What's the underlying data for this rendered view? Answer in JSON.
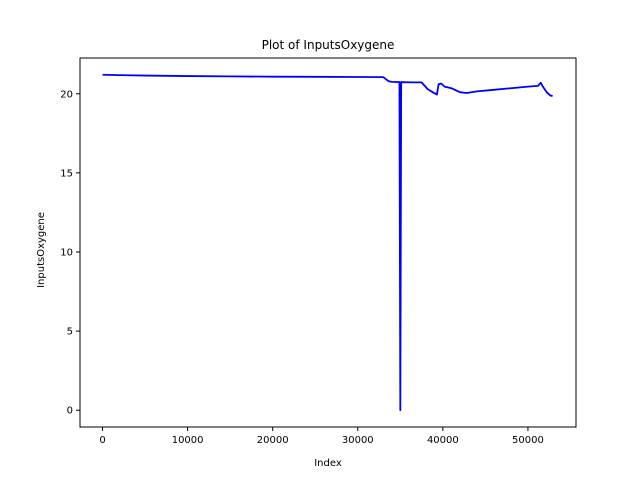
{
  "chart_data": {
    "type": "line",
    "title": "Plot of InputsOxygene",
    "xlabel": "Index",
    "ylabel": "InputsOxygene",
    "xlim": [
      -2650,
      55650
    ],
    "ylim": [
      -1.06,
      22.26
    ],
    "xticks": [
      0,
      10000,
      20000,
      30000,
      40000,
      50000
    ],
    "yticks": [
      0,
      5,
      10,
      15,
      20
    ],
    "grid": false,
    "series": [
      {
        "color": "#0000ff",
        "x": [
          0,
          2000,
          5000,
          10000,
          15000,
          20000,
          25000,
          30000,
          33000,
          33600,
          34000,
          34900,
          35000,
          35100,
          35500,
          36500,
          37500,
          38200,
          38800,
          39300,
          39500,
          39800,
          40200,
          41000,
          42000,
          42800,
          44000,
          46000,
          48000,
          50000,
          51200,
          51500,
          51700,
          52200,
          52600,
          52900
        ],
        "y": [
          21.2,
          21.18,
          21.15,
          21.12,
          21.1,
          21.08,
          21.07,
          21.06,
          21.05,
          20.8,
          20.75,
          20.74,
          0,
          20.74,
          20.73,
          20.72,
          20.72,
          20.3,
          20.1,
          19.95,
          20.6,
          20.65,
          20.45,
          20.35,
          20.1,
          20.05,
          20.15,
          20.25,
          20.35,
          20.45,
          20.5,
          20.7,
          20.5,
          20.1,
          19.9,
          19.85
        ]
      }
    ]
  }
}
